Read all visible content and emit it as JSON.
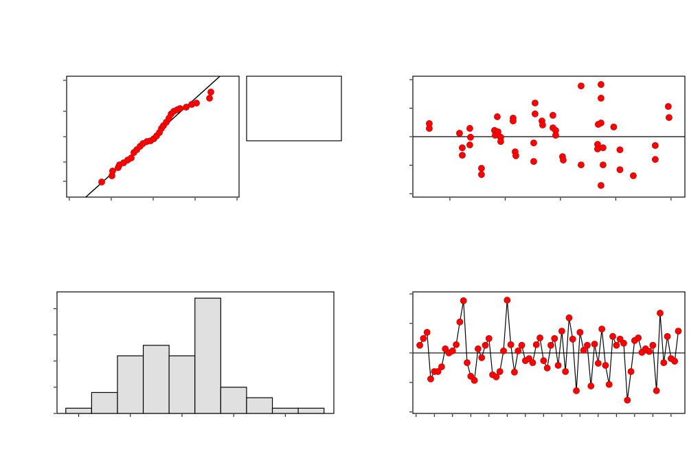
{
  "chart_data": [
    {
      "type": "scatter",
      "color": "#ff0000",
      "x": [
        19.3,
        25.4,
        25.8,
        29.1,
        29.9,
        32.4,
        34.8,
        36.9,
        38.5,
        40.2,
        42.2,
        43.9,
        46.3,
        48.4,
        50.4,
        52.0,
        53.7,
        54.9,
        56.1,
        57.8,
        59.4,
        60.7,
        62.3,
        64.3,
        66.0,
        69.7,
        73.0,
        75.8,
        83.6,
        84.4
      ],
      "values": [
        12.5,
        17.6,
        21.6,
        24.4,
        26.7,
        28.4,
        30.7,
        32.4,
        36.9,
        39.2,
        42.0,
        44.3,
        46.0,
        46.6,
        48.3,
        50.6,
        53.4,
        56.8,
        59.1,
        61.9,
        65.3,
        68.8,
        71.0,
        72.2,
        73.3,
        74.4,
        76.7,
        77.8,
        81.8,
        86.9
      ],
      "fit_line": {
        "x": [
          9.8,
          89.8
        ],
        "values": [
          0,
          100
        ]
      },
      "xlim": [
        -1.6,
        101.2
      ],
      "xticks": [
        0,
        25,
        50,
        75,
        100
      ],
      "ylim": [
        0,
        100
      ],
      "yticks": [
        13.1,
        29.0,
        50.0,
        71.0,
        96.6
      ]
    },
    {
      "type": "scatter",
      "color": "#ff0000",
      "x": [
        16.27,
        16.27,
        21.74,
        22.24,
        22.24,
        23.6,
        23.73,
        23.6,
        25.71,
        25.71,
        28.07,
        28.2,
        28.7,
        29.19,
        29.19,
        28.57,
        31.43,
        31.43,
        31.8,
        31.93,
        35.16,
        35.16,
        35.4,
        35.4,
        36.65,
        36.77,
        38.63,
        38.63,
        39.13,
        39.13,
        40.37,
        40.5,
        43.73,
        43.73,
        47.33,
        47.33,
        47.33,
        46.83,
        46.71,
        46.71,
        47.7,
        47.7,
        47.33,
        49.63,
        50.75,
        50.75,
        53.17,
        57.14,
        57.14,
        59.5,
        59.63
      ],
      "values": [
        0.46,
        0.29,
        0.12,
        -0.39,
        -0.65,
        0.29,
        -0.02,
        -0.29,
        -1.11,
        -1.33,
        0.22,
        0.05,
        0.17,
        -0.02,
        -0.17,
        0.7,
        0.65,
        0.55,
        -0.53,
        -0.67,
        -0.22,
        -0.87,
        1.18,
        0.8,
        0.55,
        0.41,
        0.75,
        0.31,
        0.22,
        0.05,
        -0.7,
        -0.82,
        1.78,
        -0.99,
        1.83,
        1.35,
        0.48,
        0.43,
        -0.27,
        -0.43,
        -0.39,
        -0.99,
        -1.71,
        0.34,
        -0.46,
        -1.16,
        -1.37,
        -0.31,
        -0.8,
        1.06,
        0.67
      ],
      "reference_line": 0,
      "xlim": [
        13.3,
        62.5
      ],
      "xticks": [
        20,
        30,
        40,
        50,
        60
      ],
      "ylim": [
        -2.12,
        2.12
      ],
      "yticks": [
        -2,
        -1,
        0,
        1,
        2
      ]
    },
    {
      "type": "histogram",
      "color": "#e0e0e0",
      "bins": [
        -2.75,
        -2.25,
        -1.75,
        -1.25,
        -0.75,
        -0.25,
        0.25,
        0.75,
        1.25,
        1.75,
        2.25
      ],
      "values": [
        1,
        4,
        11,
        13,
        11,
        22,
        5,
        3,
        1,
        1
      ],
      "xlim": [
        -2.92,
        2.44
      ],
      "xticks": [
        -2.5,
        -1.5,
        -0.5,
        0.5,
        1.5
      ],
      "ylim": [
        0,
        23.2
      ],
      "yticks": [
        0,
        5,
        10,
        15,
        20
      ]
    },
    {
      "type": "line",
      "color": "#ff0000",
      "x": [
        1,
        2,
        3,
        4,
        5,
        6,
        7,
        8,
        9,
        10,
        11,
        12,
        13,
        14,
        15,
        16,
        17,
        18,
        19,
        20,
        21,
        22,
        23,
        24,
        25,
        26,
        27,
        28,
        29,
        30,
        31,
        32,
        33,
        34,
        35,
        36,
        37,
        38,
        39,
        40,
        41,
        42,
        43,
        44,
        45,
        46,
        47,
        48,
        49,
        50,
        51,
        52,
        53,
        54,
        55,
        56,
        57,
        58,
        59,
        60,
        61,
        62,
        63,
        64,
        65,
        66,
        67,
        68,
        69,
        70,
        71,
        72
      ],
      "values": [
        0.26,
        0.49,
        0.7,
        -0.88,
        -0.63,
        -0.63,
        -0.47,
        0.14,
        0,
        0.07,
        0.28,
        1.05,
        1.77,
        -0.33,
        -0.79,
        -0.93,
        0.14,
        -0.16,
        0.26,
        0.49,
        -0.74,
        -0.81,
        -0.63,
        0.07,
        1.79,
        0.28,
        -0.65,
        0.07,
        0.26,
        -0.26,
        -0.19,
        -0.33,
        0.28,
        0.51,
        -0.26,
        -0.51,
        0.26,
        0.49,
        -0.42,
        0.74,
        -0.63,
        1.19,
        0.47,
        -1.28,
        0.7,
        0.09,
        0.26,
        -1.12,
        0.3,
        -0.35,
        0.81,
        -0.42,
        -1.07,
        0.56,
        0.26,
        0.47,
        0.33,
        -1.6,
        -0.63,
        0.42,
        0.51,
        0.02,
        0.14,
        0.05,
        0.26,
        -1.28,
        1.35,
        -0.33,
        0.56,
        -0.19,
        -0.28,
        0.74
      ],
      "reference_line": 0,
      "xlim": [
        -0.9,
        73.8
      ],
      "xticks": [
        0,
        5,
        10,
        15,
        20,
        25,
        30,
        35,
        40,
        45,
        50,
        55,
        60,
        65,
        70
      ],
      "ylim": [
        -2.05,
        2.07
      ],
      "yticks": [
        -2,
        -1,
        0,
        1,
        2
      ]
    }
  ]
}
